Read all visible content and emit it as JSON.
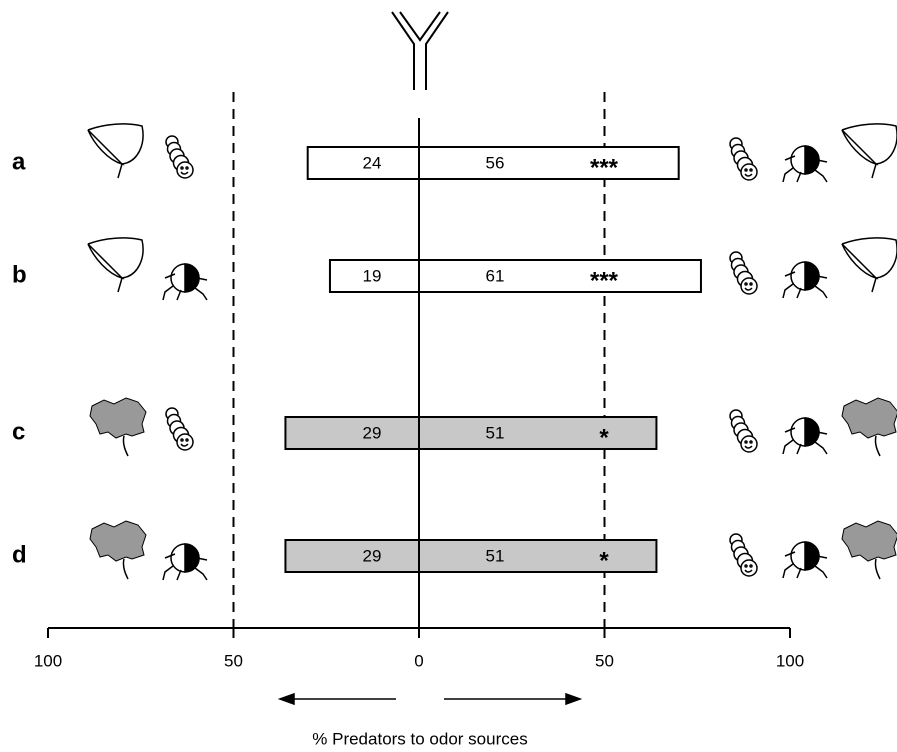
{
  "chart_data": {
    "type": "diverging-bar",
    "x_label": "% Predators to odor sources",
    "categories": [
      "a",
      "b",
      "c",
      "d"
    ],
    "left_values": [
      30,
      24,
      36,
      36
    ],
    "right_values": [
      70,
      76,
      64,
      64
    ],
    "left_counts": [
      24,
      19,
      29,
      29
    ],
    "right_counts": [
      56,
      61,
      51,
      51
    ],
    "significance": [
      "***",
      "***",
      "*",
      "*"
    ],
    "colors": [
      "#ffffff",
      "#ffffff",
      "#c8c8c8",
      "#c8c8c8"
    ],
    "xlim": [
      -100,
      100
    ],
    "xticks": [
      {
        "value": -100,
        "label": "100"
      },
      {
        "value": -50,
        "label": "50"
      },
      0,
      50,
      {
        "value": 100,
        "label": "100"
      }
    ],
    "reference_lines": [
      -50,
      50
    ]
  }
}
